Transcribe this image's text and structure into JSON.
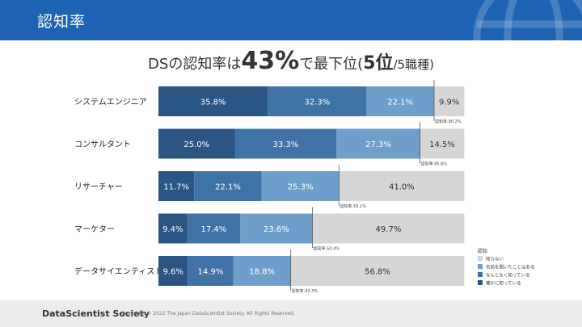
{
  "header": {
    "title": "認知率"
  },
  "headline": {
    "part1": "DSの認知率は",
    "highlight": "43%",
    "part2": "で最下位(",
    "rank": "5位",
    "part3": "/5職種)"
  },
  "colors": {
    "header_bg": "#1f63b4",
    "series": [
      "#2b5684",
      "#3f73a6",
      "#6e9fca",
      "#d6d6d6"
    ]
  },
  "chart_data": {
    "type": "bar",
    "orientation": "horizontal",
    "stacked": true,
    "categories": [
      "システムエンジニア",
      "コンサルタント",
      "リサーチャー",
      "マーケター",
      "データサイエンティスト"
    ],
    "series": [
      {
        "name": "確かに知っている",
        "values": [
          35.8,
          25.0,
          11.7,
          9.4,
          9.6
        ],
        "labels": [
          "35.8%",
          "25.0%",
          "11.7%",
          "9.4%",
          "9.6%"
        ]
      },
      {
        "name": "なんとなく知っている",
        "values": [
          32.3,
          33.3,
          22.1,
          17.4,
          14.9
        ],
        "labels": [
          "32.3%",
          "33.3%",
          "22.1%",
          "17.4%",
          "14.9%"
        ]
      },
      {
        "name": "名前を聞いたことはある",
        "values": [
          22.1,
          27.3,
          25.3,
          23.6,
          18.8
        ],
        "labels": [
          "22.1%",
          "27.3%",
          "25.3%",
          "23.6%",
          "18.8%"
        ]
      },
      {
        "name": "知らない",
        "values": [
          9.9,
          14.5,
          41.0,
          49.7,
          56.8
        ],
        "labels": [
          "9.9%",
          "14.5%",
          "41.0%",
          "49.7%",
          "56.8%"
        ]
      }
    ],
    "awareness": {
      "values": [
        90.2,
        85.6,
        59.1,
        50.4,
        43.3
      ],
      "labels": [
        "認知率:90.2%",
        "認知率:85.6%",
        "認知率:59.1%",
        "認知率:50.4%",
        "認知率:43.3%"
      ]
    },
    "legend": {
      "title": "認知",
      "order": [
        "知らない",
        "名前を聞いたことはある",
        "なんとなく知っている",
        "確かに知っている"
      ],
      "position": "bottom-right"
    },
    "xlim": [
      0,
      100
    ]
  },
  "footer": {
    "org": "DataScientist Society",
    "copyright": "Copyright © 2022 The Japan DataScientist Society. All Rights Reserved."
  }
}
